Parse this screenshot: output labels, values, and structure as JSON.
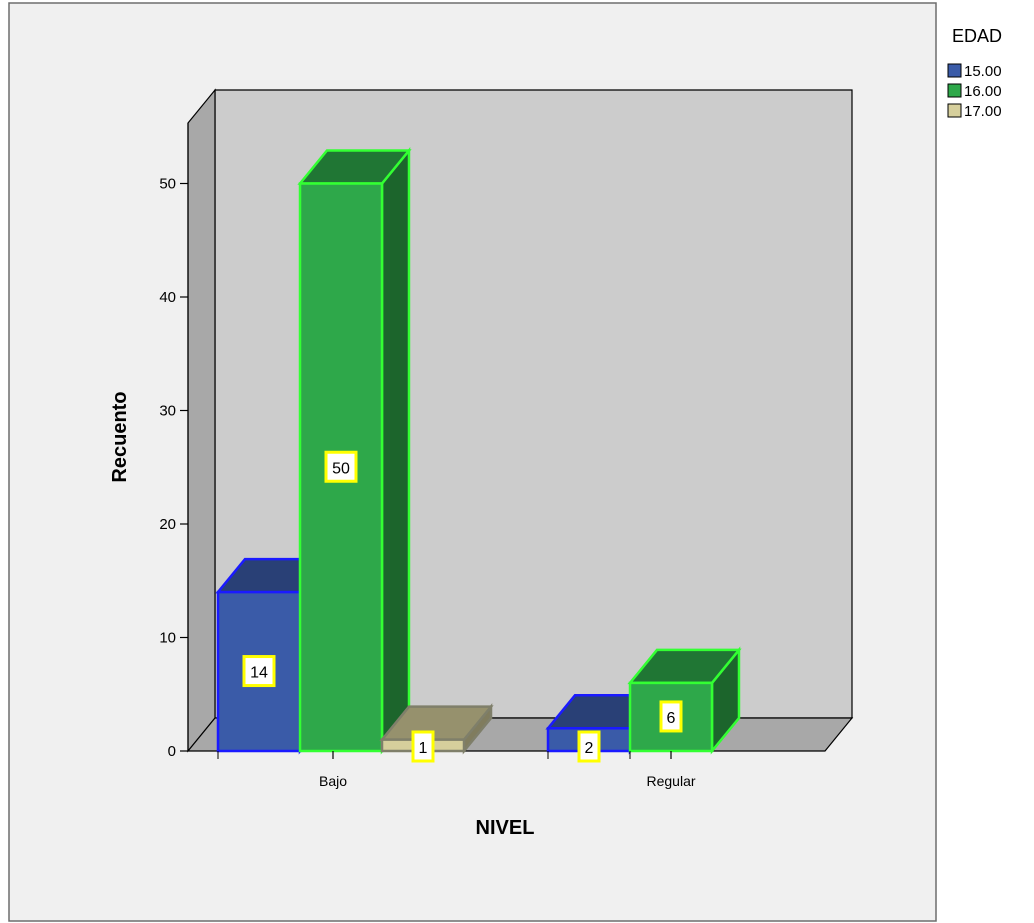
{
  "chart_data": {
    "type": "bar",
    "xlabel": "NIVEL",
    "ylabel": "Recuento",
    "categories": [
      "Bajo",
      "Regular"
    ],
    "legend_title": "EDAD",
    "legend_position": "top-right",
    "series": [
      {
        "name": "15.00",
        "values": [
          14,
          2
        ],
        "color": "#3a5ba8",
        "edge": "#1a1aff"
      },
      {
        "name": "16.00",
        "values": [
          50,
          6
        ],
        "color": "#2ea84a",
        "edge": "#33ff33"
      },
      {
        "name": "17.00",
        "values": [
          1,
          0
        ],
        "color": "#d6cf9c",
        "edge": "#7f7f6a"
      }
    ],
    "ylim": [
      0,
      53
    ],
    "yticks": [
      "0",
      "10",
      "20",
      "30",
      "40",
      "50"
    ],
    "data_labels": true,
    "grid": false,
    "three_d": true
  }
}
